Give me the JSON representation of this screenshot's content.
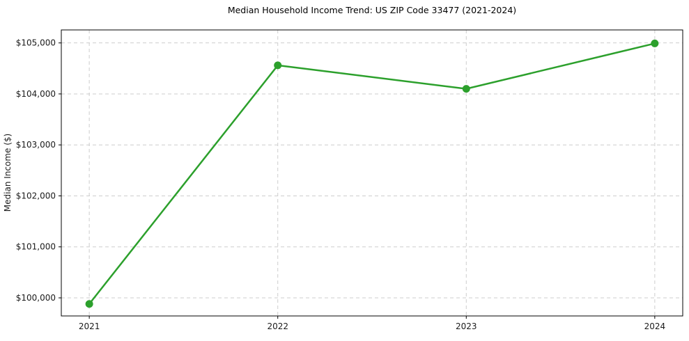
{
  "figure": {
    "background": "#ffffff"
  },
  "chart_data": {
    "type": "line",
    "title": "Median Household Income Trend: US ZIP Code 33477 (2021-2024)",
    "xlabel": "",
    "ylabel": "Median Income ($)",
    "categories": [
      "2021",
      "2022",
      "2023",
      "2024"
    ],
    "values": [
      99880,
      104560,
      104100,
      104990
    ],
    "yticks": [
      100000,
      101000,
      102000,
      103000,
      104000,
      105000
    ],
    "ytick_prefix": "$",
    "ylim": [
      99645,
      105255
    ],
    "grid": true,
    "grid_style": "dashed",
    "legend_position": "none",
    "line_color": "#2ca02c",
    "marker_color": "#2ca02c",
    "grid_color": "#cdcdcd",
    "axis_color": "#000000",
    "text_color": "#1a1a1a"
  }
}
